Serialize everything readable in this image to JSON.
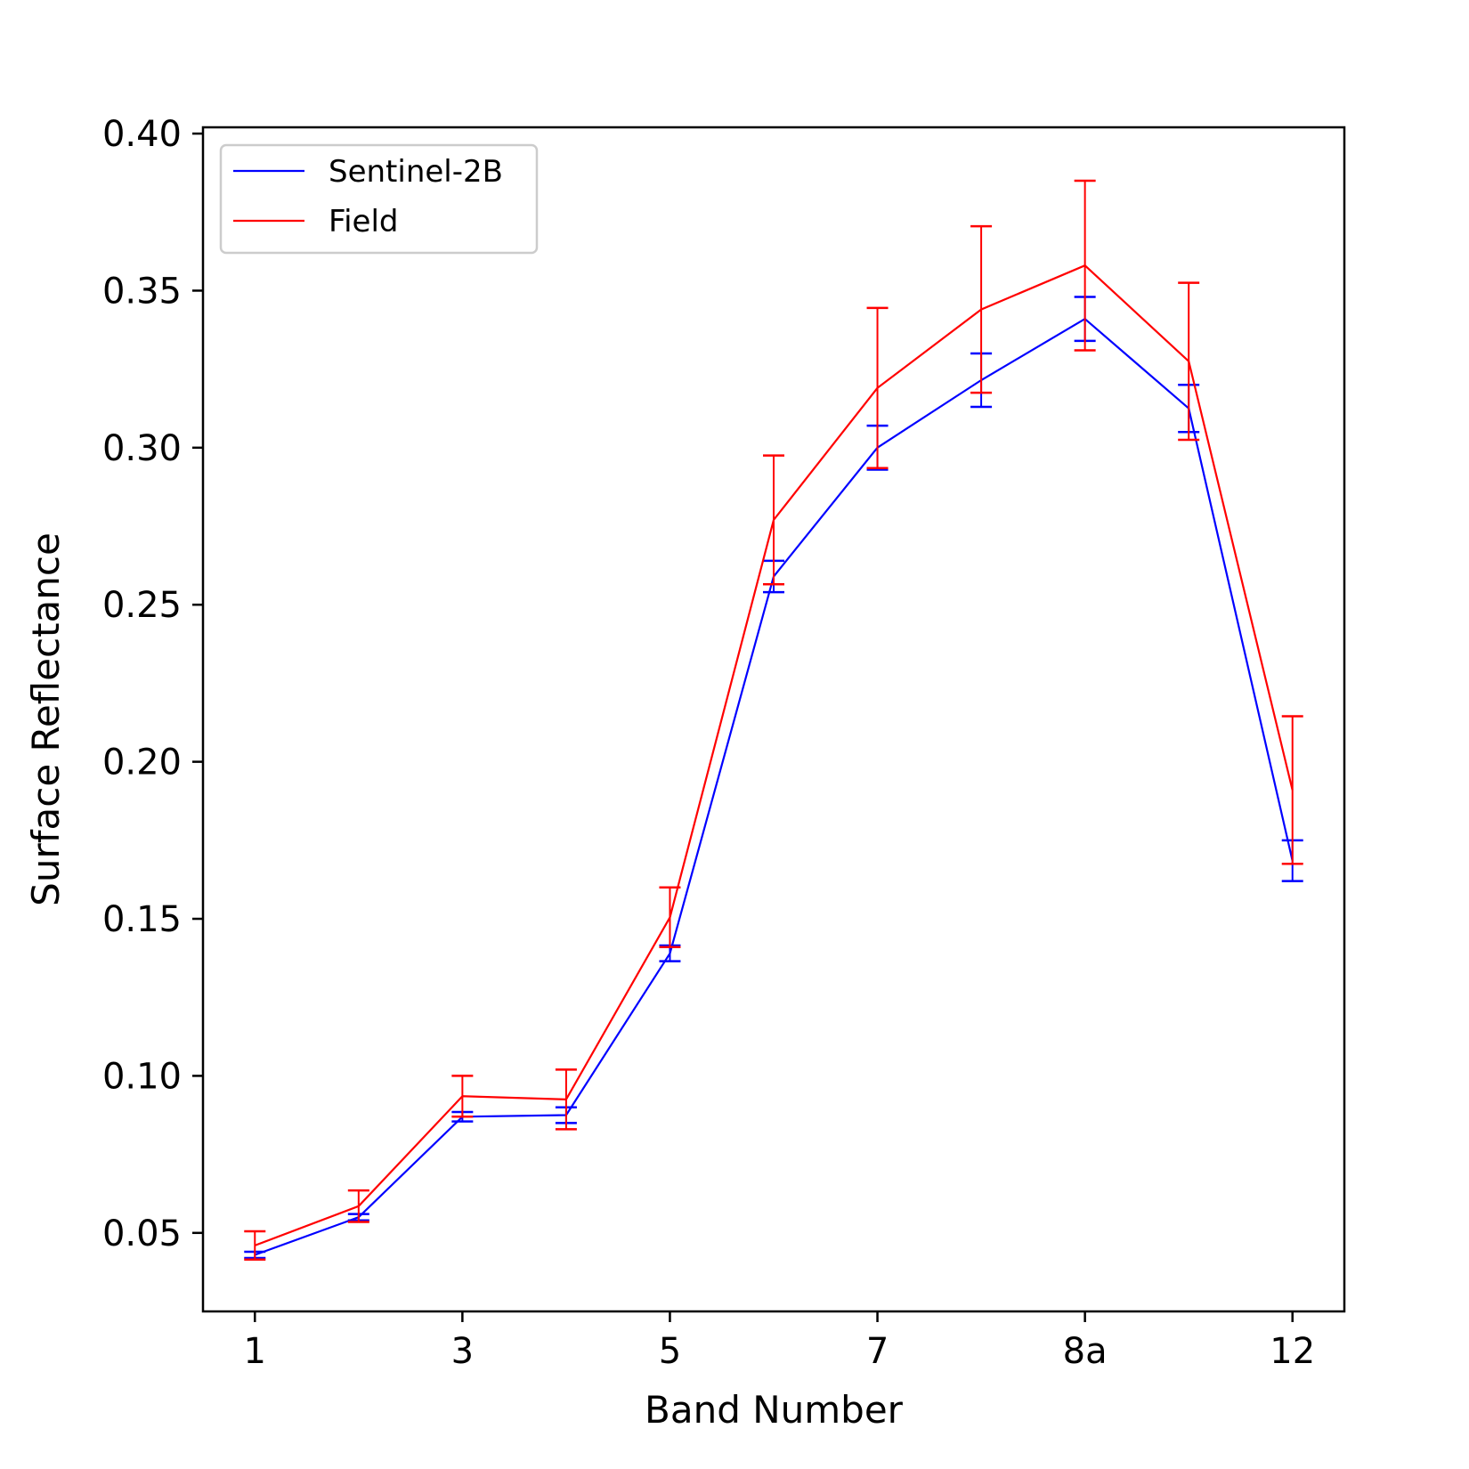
{
  "chart_data": {
    "type": "line",
    "title": "",
    "xlabel": "Band Number",
    "ylabel": "Surface Reflectance",
    "x_ticks": [
      "1",
      "3",
      "5",
      "7",
      "8a",
      "12"
    ],
    "x_tick_positions": [
      1,
      3,
      5,
      7,
      9,
      11
    ],
    "x": [
      1,
      2,
      3,
      4,
      5,
      6,
      7,
      8,
      9,
      10,
      11
    ],
    "xlim": [
      0.5,
      11.5
    ],
    "ylim": [
      0.025,
      0.402
    ],
    "y_ticks": [
      "0.05",
      "0.10",
      "0.15",
      "0.20",
      "0.25",
      "0.30",
      "0.35",
      "0.40"
    ],
    "y_tick_values": [
      0.05,
      0.1,
      0.15,
      0.2,
      0.25,
      0.3,
      0.35,
      0.4
    ],
    "legend_position": "upper-left",
    "grid": false,
    "series": [
      {
        "name": "Sentinel-2B",
        "color": "#0000ff",
        "values": [
          0.043,
          0.055,
          0.087,
          0.0875,
          0.139,
          0.259,
          0.3,
          0.3215,
          0.341,
          0.3125,
          0.1685
        ],
        "errors": [
          0.001,
          0.001,
          0.0015,
          0.0025,
          0.0025,
          0.005,
          0.007,
          0.0085,
          0.007,
          0.0075,
          0.0065
        ]
      },
      {
        "name": "Field",
        "color": "#ff0000",
        "values": [
          0.046,
          0.0585,
          0.0935,
          0.0925,
          0.1505,
          0.277,
          0.319,
          0.344,
          0.358,
          0.3275,
          0.191
        ],
        "errors": [
          0.0045,
          0.005,
          0.0065,
          0.0095,
          0.0095,
          0.0205,
          0.0255,
          0.0265,
          0.027,
          0.025,
          0.0235
        ]
      }
    ]
  }
}
